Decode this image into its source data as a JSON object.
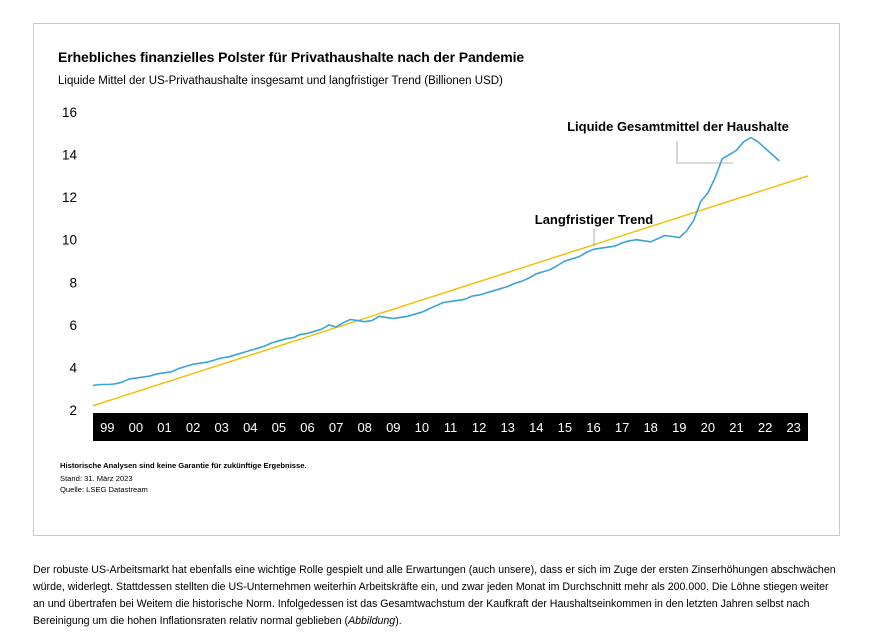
{
  "chart_data": {
    "type": "line",
    "title": "Erhebliches finanzielles Polster für Privathaushalte nach der Pandemie",
    "subtitle": "Liquide Mittel der US-Privathaushalte insgesamt und langfristiger Trend (Billionen USD)",
    "xlabel": "",
    "ylabel": "",
    "ylim": [
      2,
      16
    ],
    "yticks": [
      2,
      4,
      6,
      8,
      10,
      12,
      14,
      16
    ],
    "xlim": [
      1999,
      2024
    ],
    "categories": [
      "99",
      "00",
      "01",
      "02",
      "03",
      "04",
      "05",
      "06",
      "07",
      "08",
      "09",
      "10",
      "11",
      "12",
      "13",
      "14",
      "15",
      "16",
      "17",
      "18",
      "19",
      "20",
      "21",
      "22",
      "23"
    ],
    "grid": false,
    "series": [
      {
        "name": "Liquide Gesamtmittel der Haushalte",
        "color": "#3aa3d9",
        "x": [
          1999.0,
          1999.25,
          1999.5,
          1999.75,
          2000.0,
          2000.25,
          2000.5,
          2000.75,
          2001.0,
          2001.25,
          2001.5,
          2001.75,
          2002.0,
          2002.25,
          2002.5,
          2002.75,
          2003.0,
          2003.25,
          2003.5,
          2003.75,
          2004.0,
          2004.25,
          2004.5,
          2004.75,
          2005.0,
          2005.25,
          2005.5,
          2005.75,
          2006.0,
          2006.25,
          2006.5,
          2006.75,
          2007.0,
          2007.25,
          2007.5,
          2007.75,
          2008.0,
          2008.25,
          2008.5,
          2008.75,
          2009.0,
          2009.25,
          2009.5,
          2009.75,
          2010.0,
          2010.25,
          2010.5,
          2010.75,
          2011.0,
          2011.25,
          2011.5,
          2011.75,
          2012.0,
          2012.25,
          2012.5,
          2012.75,
          2013.0,
          2013.25,
          2013.5,
          2013.75,
          2014.0,
          2014.25,
          2014.5,
          2014.75,
          2015.0,
          2015.25,
          2015.5,
          2015.75,
          2016.0,
          2016.25,
          2016.5,
          2016.75,
          2017.0,
          2017.25,
          2017.5,
          2017.75,
          2018.0,
          2018.25,
          2018.5,
          2018.75,
          2019.0,
          2019.25,
          2019.5,
          2019.75,
          2020.0,
          2020.25,
          2020.5,
          2020.75,
          2021.0,
          2021.25,
          2021.5,
          2021.75,
          2022.0,
          2022.25,
          2022.5,
          2022.75,
          2023.0
        ],
        "values": [
          3.15,
          3.2,
          3.2,
          3.22,
          3.3,
          3.45,
          3.5,
          3.55,
          3.6,
          3.7,
          3.75,
          3.8,
          3.95,
          4.05,
          4.15,
          4.2,
          4.25,
          4.35,
          4.45,
          4.5,
          4.6,
          4.7,
          4.8,
          4.9,
          5.0,
          5.15,
          5.25,
          5.35,
          5.4,
          5.55,
          5.6,
          5.7,
          5.8,
          6.0,
          5.9,
          6.1,
          6.25,
          6.2,
          6.15,
          6.2,
          6.4,
          6.35,
          6.3,
          6.35,
          6.4,
          6.5,
          6.6,
          6.75,
          6.9,
          7.05,
          7.1,
          7.15,
          7.2,
          7.35,
          7.4,
          7.5,
          7.6,
          7.7,
          7.8,
          7.95,
          8.05,
          8.2,
          8.4,
          8.5,
          8.6,
          8.8,
          9.0,
          9.1,
          9.2,
          9.4,
          9.55,
          9.6,
          9.65,
          9.7,
          9.85,
          9.95,
          10.0,
          9.95,
          9.9,
          10.05,
          10.2,
          10.15,
          10.1,
          10.4,
          10.9,
          11.8,
          12.2,
          12.9,
          13.8,
          14.0,
          14.2,
          14.6,
          14.8,
          14.6,
          14.3,
          14.0,
          13.7
        ]
      },
      {
        "name": "Langfristiger Trend",
        "color": "#f2bc00",
        "x": [
          1999.0,
          2024.0
        ],
        "values": [
          2.2,
          13.0
        ]
      }
    ],
    "annotations": [
      {
        "text": "Liquide Gesamtmittel der Haushalte",
        "series": 0
      },
      {
        "text": "Langfristiger Trend",
        "series": 1
      }
    ]
  },
  "notes": {
    "disclaimer": "Historische Analysen sind keine Garantie für zukünftige Ergebnisse.",
    "date": "Stand: 31. März 2023",
    "source": "Quelle: LSEG Datastream"
  },
  "paragraph": {
    "main": "Der robuste US-Arbeitsmarkt hat ebenfalls eine wichtige Rolle gespielt und alle Erwartungen (auch unsere), dass er sich im Zuge der ersten Zinserhöhungen abschwächen würde, widerlegt. Stattdessen stellten die US-Unternehmen weiterhin Arbeitskräfte ein, und zwar jeden Monat im Durchschnitt mehr als 200.000. Die Löhne stiegen weiter an und übertrafen bei Weitem die historische Norm. Infolgedessen ist das Gesamtwachstum der Kaufkraft der Haushaltseinkommen in den letzten Jahren selbst nach Bereinigung um die hohen Inflationsraten relativ normal geblieben (",
    "cite": "Abbildung",
    "end": ")."
  },
  "colors": {
    "axis_bar": "#000000",
    "axis_bar_text": "#ffffff",
    "leader_line": "#9a9a9a",
    "card_border": "#c9c9c9"
  }
}
